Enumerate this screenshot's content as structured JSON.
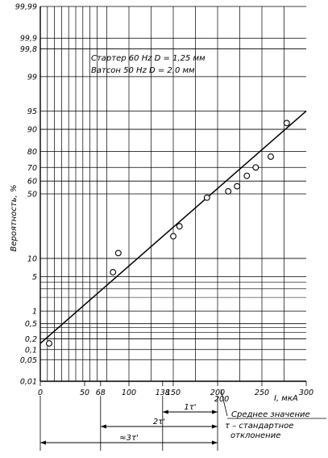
{
  "chart_data": {
    "type": "scatter",
    "title": "",
    "xlabel": "I, мкА",
    "ylabel": "Вероятность, %",
    "xlim": [
      0,
      300
    ],
    "y_scale": "normal-probability",
    "ylim": [
      0.01,
      99.99
    ],
    "x_ticks": [
      "0",
      "50",
      "68",
      "100",
      "138",
      "150",
      "200",
      "250",
      "300"
    ],
    "y_ticks": [
      "0,01",
      "0,05",
      "0,1",
      "0,2",
      "0,5",
      "1",
      "5",
      "10",
      "50",
      "60",
      "70",
      "80",
      "90",
      "95",
      "99",
      "99,8",
      "99,9",
      "99,99"
    ],
    "legend": [
      "Стартер 60 Hz D = 1,25 мм",
      "Ватсон 50 Hz D = 2,0 мм"
    ],
    "points": [
      {
        "x": 10,
        "y": 0.15
      },
      {
        "x": 82,
        "y": 6
      },
      {
        "x": 88,
        "y": 12
      },
      {
        "x": 150,
        "y": 20
      },
      {
        "x": 157,
        "y": 26
      },
      {
        "x": 188,
        "y": 47
      },
      {
        "x": 212,
        "y": 52
      },
      {
        "x": 222,
        "y": 56
      },
      {
        "x": 233,
        "y": 64
      },
      {
        "x": 243,
        "y": 70
      },
      {
        "x": 260,
        "y": 77
      },
      {
        "x": 278,
        "y": 92
      }
    ],
    "fit_line": {
      "x": [
        0,
        300
      ],
      "y": [
        0.15,
        95
      ]
    },
    "grid": true,
    "below_axis": {
      "mean_label": "Среднее значение",
      "mean_value": "200",
      "tau_note": "τ – стандартное отклонение",
      "intervals": [
        {
          "label": "1τ'",
          "from": 138,
          "to": 200
        },
        {
          "label": "2τ'",
          "from": 68,
          "to": 200
        },
        {
          "label": "≈3τ'",
          "from": 0,
          "to": 200
        }
      ]
    }
  }
}
